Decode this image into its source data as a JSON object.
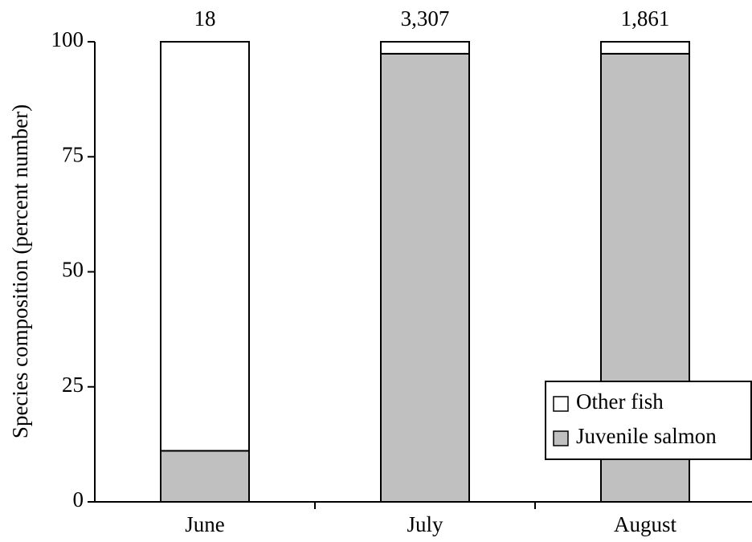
{
  "chart_data": {
    "type": "stacked_bar",
    "y_label": "Species composition (percent number)",
    "categories": [
      "June",
      "July",
      "August"
    ],
    "series": [
      {
        "name": "Juvenile salmon",
        "color": "#c0c0c0",
        "values": [
          11.1,
          97.4,
          97.4
        ]
      },
      {
        "name": "Other fish",
        "color": "#ffffff",
        "values": [
          88.9,
          2.6,
          2.6
        ]
      }
    ],
    "bar_labels": [
      "18",
      "3,307",
      "1,861"
    ],
    "ylim": [
      0,
      100
    ],
    "yticks": [
      0,
      25,
      50,
      75,
      100
    ],
    "legend": "lower right"
  }
}
